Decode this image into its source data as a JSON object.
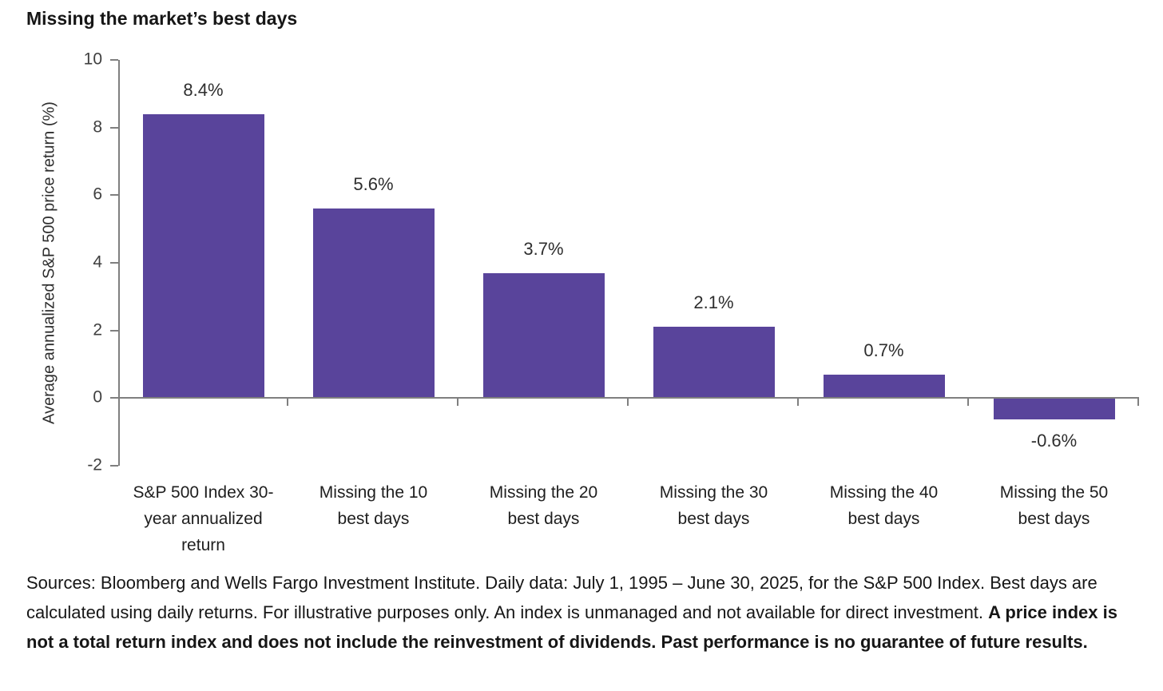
{
  "chart_data": {
    "type": "bar",
    "title": "Missing the market’s best days",
    "ylabel": "Average annualized S&P 500 price return (%)",
    "xlabel": "",
    "categories": [
      "S&P 500 Index 30-year annualized return",
      "Missing the 10 best days",
      "Missing the 20 best days",
      "Missing the 30 best days",
      "Missing the 40 best days",
      "Missing the 50 best days"
    ],
    "category_lines": [
      [
        "S&P 500 Index 30-",
        "year annualized",
        "return"
      ],
      [
        "Missing the 10",
        "best days"
      ],
      [
        "Missing the 20",
        "best days"
      ],
      [
        "Missing the 30",
        "best days"
      ],
      [
        "Missing the 40",
        "best days"
      ],
      [
        "Missing the 50",
        "best days"
      ]
    ],
    "values": [
      8.4,
      5.6,
      3.7,
      2.1,
      0.7,
      -0.6
    ],
    "value_labels": [
      "8.4%",
      "5.6%",
      "3.7%",
      "2.1%",
      "0.7%",
      "-0.6%"
    ],
    "yticks": [
      10,
      8,
      6,
      4,
      2,
      0,
      -2
    ],
    "ylim": [
      -2,
      10
    ],
    "grid": false,
    "legend_position": "none",
    "bar_color": "#59449b",
    "axis_color": "#7f7f7f"
  },
  "footer": {
    "text_normal": "Sources: Bloomberg and Wells Fargo Investment Institute. Daily data: July 1, 1995 – June 30, 2025, for the S&P 500 Index. Best days are calculated using daily returns. For illustrative purposes only. An index is unmanaged and not available for direct investment. ",
    "text_bold": "A price index is not a total return index and does not include the reinvestment of dividends. Past performance is no guarantee of future results."
  }
}
